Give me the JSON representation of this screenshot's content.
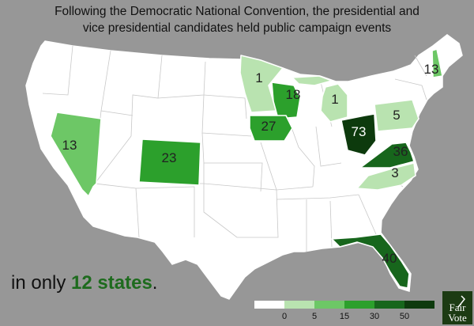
{
  "title": {
    "line1": "Following the Democratic National Convention, the presidential and",
    "line2": "vice presidential candidates held public campaign events"
  },
  "footnote": {
    "prefix": "in only ",
    "highlight": "12 states",
    "suffix": "."
  },
  "colors": {
    "background": "#979797",
    "zero": "#ffffff",
    "level_1_5": "#b9e3b0",
    "level_5_15": "#6dc766",
    "level_15_30": "#2ca02c",
    "level_30_50": "#17661c",
    "level_50_plus": "#0d3a0d",
    "border": "#ffffff"
  },
  "legend": {
    "ticks": [
      "0",
      "5",
      "15",
      "30",
      "50"
    ]
  },
  "states_with_events": [
    {
      "state": "Minnesota",
      "events": "1"
    },
    {
      "state": "Wisconsin",
      "events": "18"
    },
    {
      "state": "Iowa",
      "events": "27"
    },
    {
      "state": "Michigan",
      "events": "1"
    },
    {
      "state": "Ohio",
      "events": "73"
    },
    {
      "state": "Pennsylvania",
      "events": "5"
    },
    {
      "state": "New Hampshire",
      "events": "13"
    },
    {
      "state": "Virginia",
      "events": "36"
    },
    {
      "state": "North Carolina",
      "events": "3"
    },
    {
      "state": "Florida",
      "events": "40"
    },
    {
      "state": "Colorado",
      "events": "23"
    },
    {
      "state": "Nevada",
      "events": "13"
    }
  ],
  "logo": {
    "line1": "Fair",
    "line2": "Vote"
  }
}
